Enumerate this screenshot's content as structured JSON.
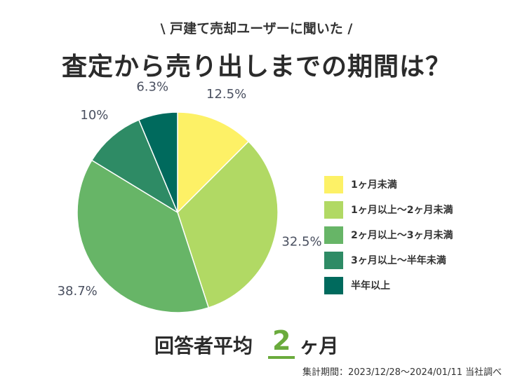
{
  "header": {
    "subtitle": "\\ 戸建て売却ユーザーに聞いた /",
    "title": "査定から売り出しまでの期間は？"
  },
  "chart_data": {
    "type": "pie",
    "title": "査定から売り出しまでの期間は？",
    "slices": [
      {
        "name": "1ヶ月未満",
        "value": 12.5,
        "label": "12.5%",
        "color": "#fdf166"
      },
      {
        "name": "1ヶ月以上〜2ヶ月未満",
        "value": 32.5,
        "label": "32.5%",
        "color": "#b1d964"
      },
      {
        "name": "2ヶ月以上〜3ヶ月未満",
        "value": 38.7,
        "label": "38.7%",
        "color": "#67b567"
      },
      {
        "name": "3ヶ月以上〜半年未満",
        "value": 10,
        "label": "10%",
        "color": "#2e8b65"
      },
      {
        "name": "半年以上",
        "value": 6.3,
        "label": "6.3%",
        "color": "#006a5d"
      }
    ],
    "legend": [
      "1ヶ月未満",
      "1ヶ月以上〜2ヶ月未満",
      "2ヶ月以上〜3ヶ月未満",
      "3ヶ月以上〜半年未満",
      "半年以上"
    ],
    "legend_position": "right"
  },
  "summary": {
    "label": "回答者平均",
    "value": "2",
    "unit": "ヶ月"
  },
  "footnote": "集計期間：2023/12/28〜2024/01/11 当社調べ"
}
